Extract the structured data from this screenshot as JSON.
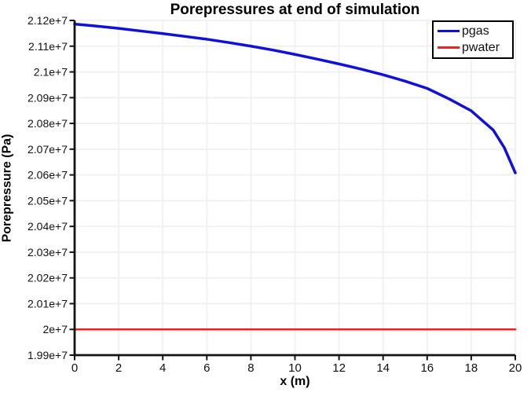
{
  "chart_data": {
    "type": "line",
    "title": "Porepressures at end of simulation",
    "xlabel": "x (m)",
    "ylabel": "Porepressure (Pa)",
    "xlim": [
      0,
      20
    ],
    "ylim": [
      19900000,
      21200000
    ],
    "x_ticks": [
      0,
      2,
      4,
      6,
      8,
      10,
      12,
      14,
      16,
      18,
      20
    ],
    "x_tick_labels": [
      "0",
      "2",
      "4",
      "6",
      "8",
      "10",
      "12",
      "14",
      "16",
      "18",
      "20"
    ],
    "y_ticks": [
      21200000,
      21100000,
      21000000,
      20900000,
      20800000,
      20700000,
      20600000,
      20500000,
      20400000,
      20300000,
      20200000,
      20100000,
      20000000,
      19900000
    ],
    "y_tick_labels": [
      "2.12e+7",
      "2.11e+7",
      "2.1e+7",
      "2.09e+7",
      "2.08e+7",
      "2.07e+7",
      "2.06e+7",
      "2.05e+7",
      "2.04e+7",
      "2.03e+7",
      "2.02e+7",
      "2.01e+7",
      "2e+7",
      "1.99e+7"
    ],
    "grid": true,
    "grid_color": "#f0f0f0",
    "axis_color": "#141414",
    "legend_position": "top-right",
    "series": [
      {
        "name": "pgas",
        "color": "#1010dd",
        "line_width": 3.5,
        "x": [
          0,
          1,
          2,
          3,
          4,
          5,
          6,
          7,
          8,
          9,
          10,
          11,
          12,
          13,
          14,
          15,
          16,
          17,
          18,
          19,
          19.5,
          20
        ],
        "y": [
          21186000,
          21178000,
          21169000,
          21159000,
          21149000,
          21138000,
          21127000,
          21114000,
          21100000,
          21085000,
          21068000,
          21050000,
          21031000,
          21011000,
          20989000,
          20964000,
          20936000,
          20895000,
          20849000,
          20774000,
          20706000,
          20608000
        ]
      },
      {
        "name": "pwater",
        "color": "#ee2020",
        "line_width": 2.5,
        "x": [
          0,
          20
        ],
        "y": [
          20000000,
          20000000
        ]
      }
    ]
  }
}
